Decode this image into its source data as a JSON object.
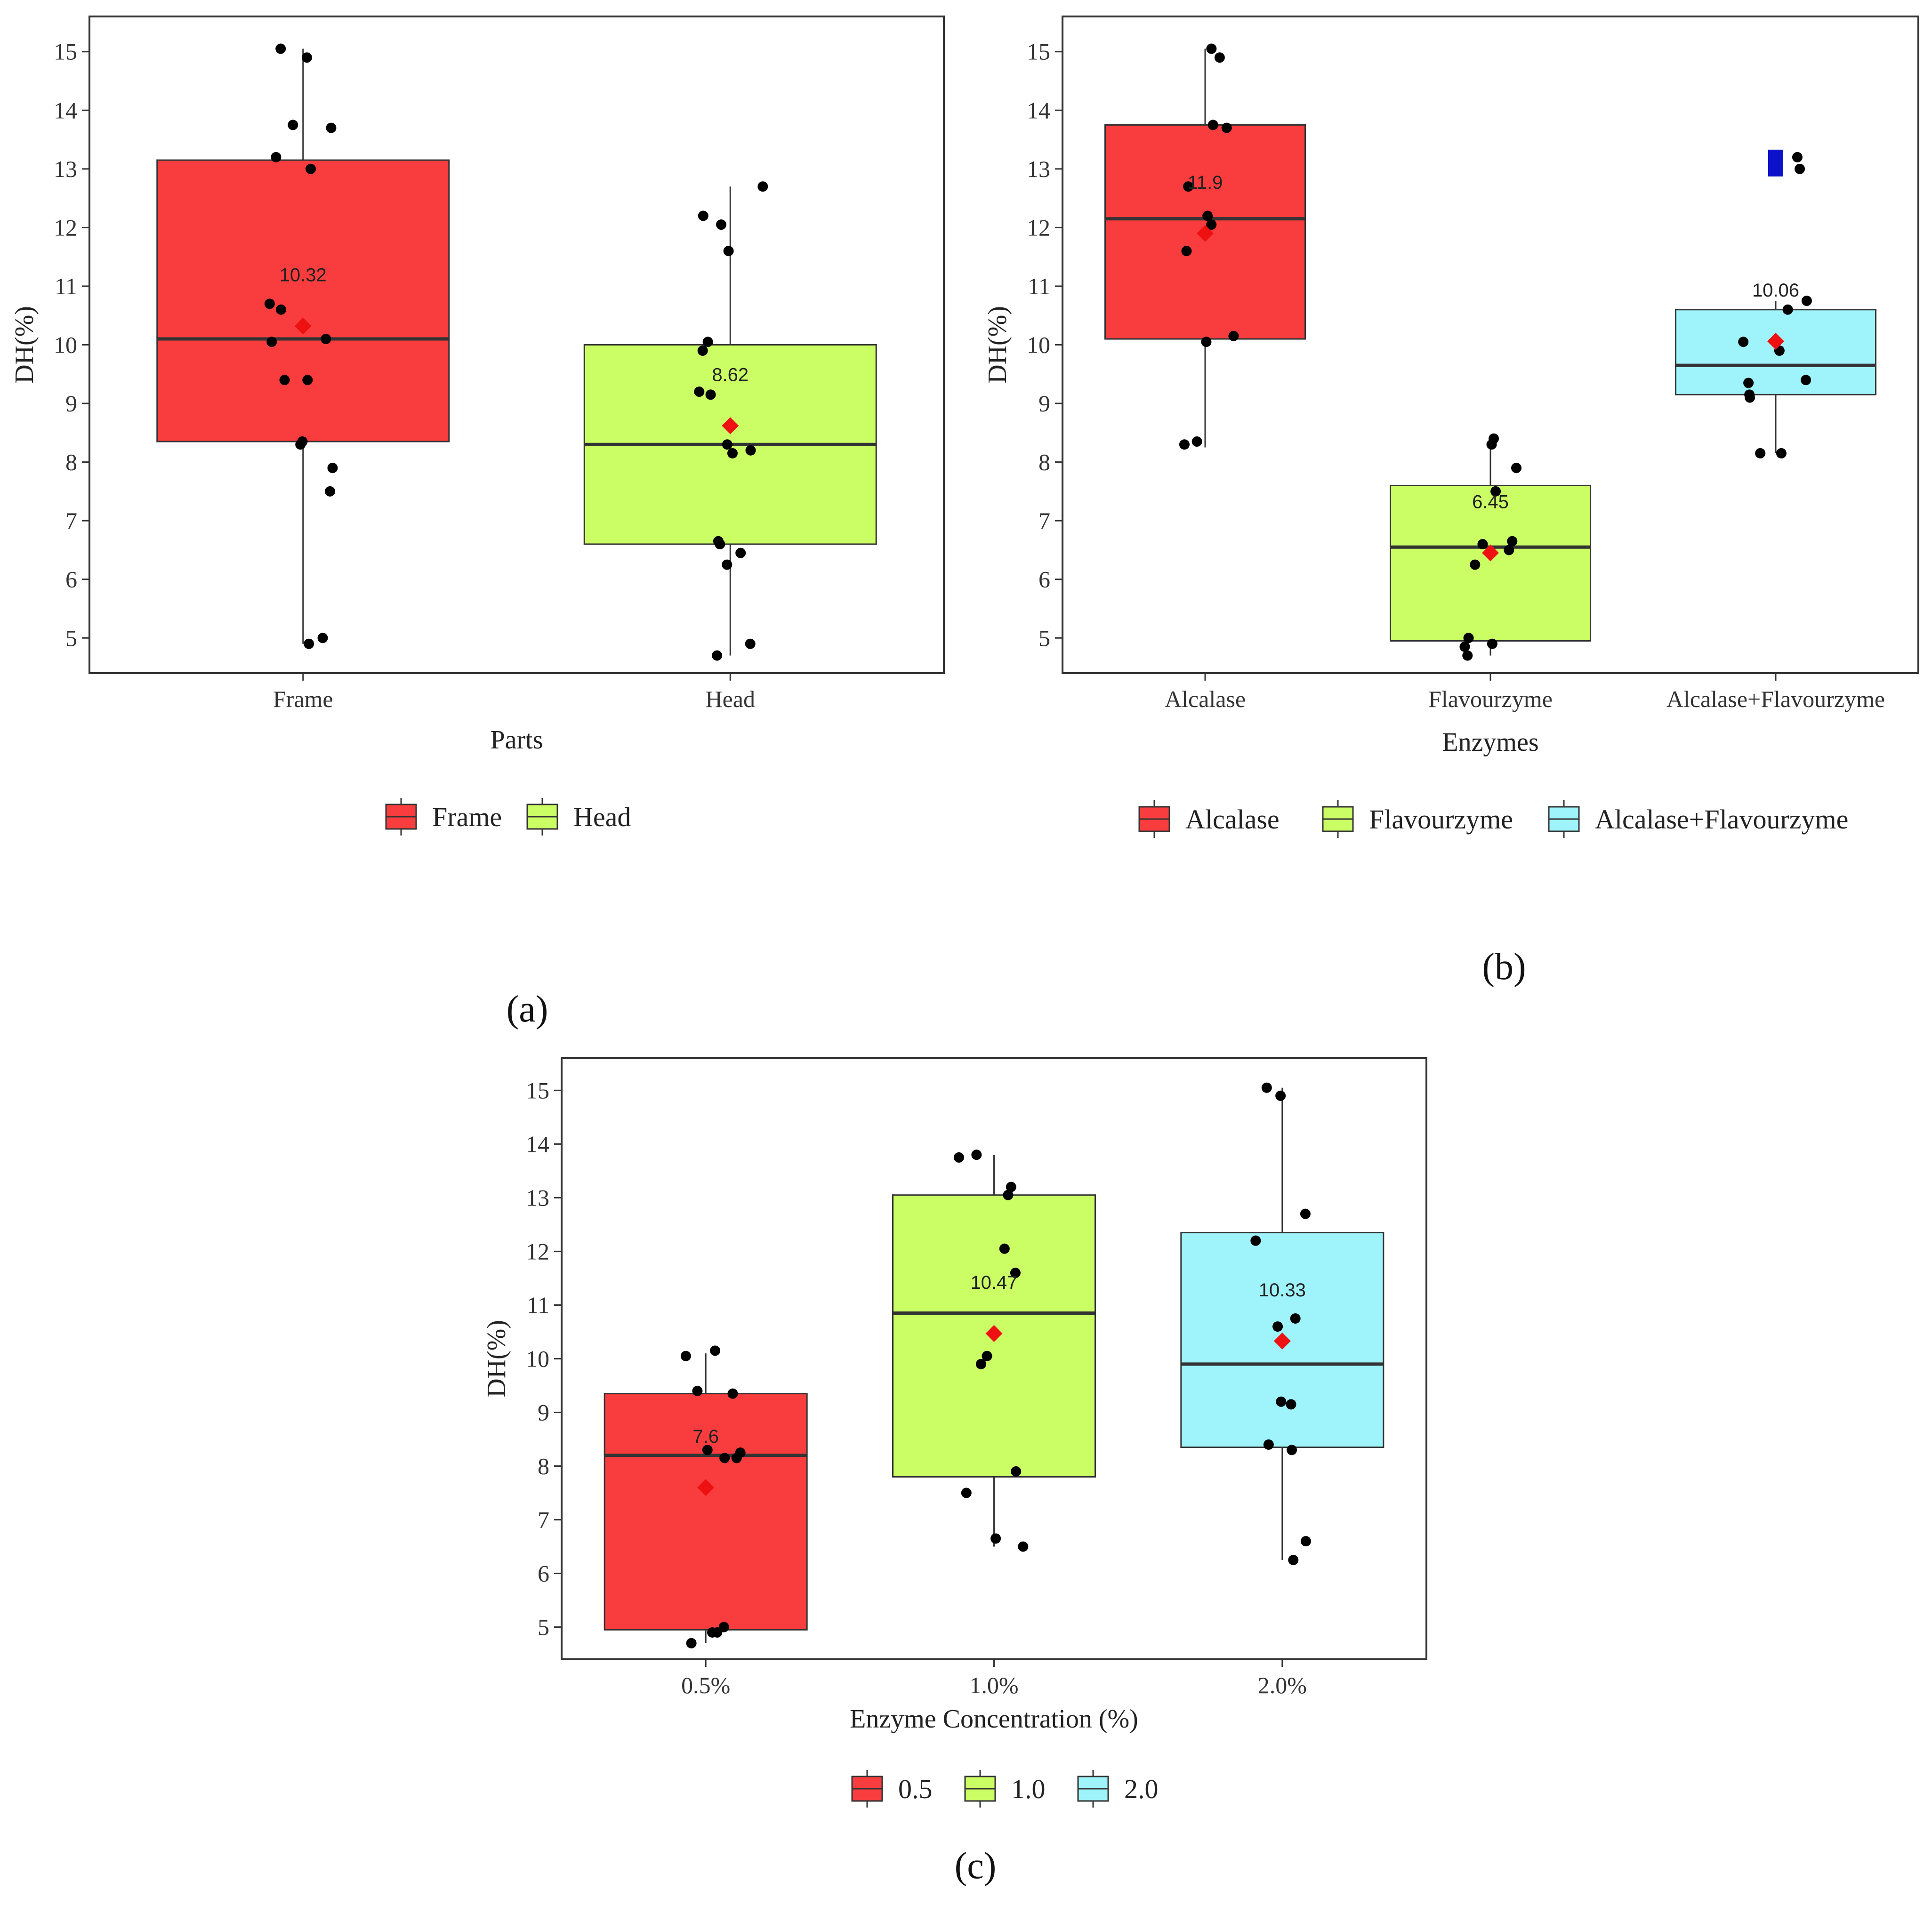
{
  "chart_data": [
    {
      "type": "box",
      "panel_label": "(a)",
      "xlabel": "Parts",
      "ylabel": "DH(%)",
      "ylim": [
        4.4,
        15.6
      ],
      "yticks": [
        "5",
        "6",
        "7",
        "8",
        "9",
        "10",
        "11",
        "12",
        "13",
        "14",
        "15"
      ],
      "legend_title": "",
      "legend_position": "bottom",
      "groups": [
        {
          "category": "Frame",
          "legend_label": "Frame",
          "color": "#f93d3e",
          "q1": 8.35,
          "median": 10.1,
          "q3": 13.15,
          "whisker_low": 4.9,
          "whisker_high": 15.05,
          "mean": 10.32,
          "mean_label": "10.32",
          "outliers": [],
          "points": [
            15.05,
            14.9,
            13.75,
            13.7,
            13.2,
            13.0,
            10.7,
            10.6,
            10.1,
            10.05,
            9.4,
            9.4,
            8.35,
            8.3,
            7.9,
            7.5,
            5.0,
            4.9
          ]
        },
        {
          "category": "Head",
          "legend_label": "Head",
          "color": "#cbfd65",
          "q1": 6.6,
          "median": 8.3,
          "q3": 10.0,
          "whisker_low": 4.7,
          "whisker_high": 12.7,
          "mean": 8.62,
          "mean_label": "8.62",
          "outliers": [],
          "points": [
            12.7,
            12.2,
            12.05,
            11.6,
            10.05,
            9.9,
            9.2,
            9.15,
            8.3,
            8.2,
            8.15,
            6.65,
            6.6,
            6.45,
            6.25,
            4.9,
            4.7
          ]
        }
      ]
    },
    {
      "type": "box",
      "panel_label": "(b)",
      "xlabel": "Enzymes",
      "ylabel": "DH(%)",
      "ylim": [
        4.4,
        15.6
      ],
      "yticks": [
        "5",
        "6",
        "7",
        "8",
        "9",
        "10",
        "11",
        "12",
        "13",
        "14",
        "15"
      ],
      "legend_title": "",
      "legend_position": "bottom",
      "groups": [
        {
          "category": "Alcalase",
          "legend_label": "Alcalase",
          "color": "#f93d3e",
          "q1": 10.1,
          "median": 12.15,
          "q3": 13.75,
          "whisker_low": 8.25,
          "whisker_high": 15.05,
          "mean": 11.9,
          "mean_label": "11.9",
          "outliers": [],
          "points": [
            15.05,
            14.9,
            13.75,
            13.7,
            12.7,
            12.2,
            12.05,
            11.6,
            10.15,
            10.05,
            8.35,
            8.3
          ]
        },
        {
          "category": "Flavourzyme",
          "legend_label": "Flavourzyme",
          "color": "#cbfd65",
          "q1": 4.95,
          "median": 6.55,
          "q3": 7.6,
          "whisker_low": 4.7,
          "whisker_high": 8.4,
          "mean": 6.45,
          "mean_label": "6.45",
          "outliers": [],
          "points": [
            8.4,
            8.3,
            7.9,
            7.5,
            6.65,
            6.6,
            6.5,
            6.25,
            5.0,
            4.9,
            4.85,
            4.7
          ]
        },
        {
          "category": "Alcalase+Flavourzyme",
          "legend_label": "Alcalase+Flavourzyme",
          "color": "#9ff4fb",
          "q1": 9.15,
          "median": 9.65,
          "q3": 10.6,
          "whisker_low": 8.15,
          "whisker_high": 10.75,
          "mean": 10.06,
          "mean_label": "10.06",
          "outliers": [
            13.2,
            13.0
          ],
          "points": [
            13.2,
            13.0,
            10.75,
            10.6,
            10.05,
            9.9,
            9.4,
            9.35,
            9.15,
            9.1,
            8.15,
            8.15
          ]
        }
      ]
    },
    {
      "type": "box",
      "panel_label": "(c)",
      "xlabel": "Enzyme Concentration (%)",
      "ylabel": "DH(%)",
      "ylim": [
        4.4,
        15.6
      ],
      "yticks": [
        "5",
        "6",
        "7",
        "8",
        "9",
        "10",
        "11",
        "12",
        "13",
        "14",
        "15"
      ],
      "legend_title": "",
      "legend_position": "bottom",
      "groups": [
        {
          "category": "0.5%",
          "legend_label": "0.5",
          "color": "#f93d3e",
          "q1": 4.95,
          "median": 8.2,
          "q3": 9.35,
          "whisker_low": 4.7,
          "whisker_high": 10.1,
          "mean": 7.6,
          "mean_label": "7.6",
          "outliers": [],
          "points": [
            10.15,
            10.05,
            9.4,
            9.35,
            8.3,
            8.25,
            8.15,
            8.15,
            5.0,
            4.9,
            4.9,
            4.7
          ]
        },
        {
          "category": "1.0%",
          "legend_label": "1.0",
          "color": "#cbfd65",
          "q1": 7.8,
          "median": 10.85,
          "q3": 13.05,
          "whisker_low": 6.5,
          "whisker_high": 13.8,
          "mean": 10.47,
          "mean_label": "10.47",
          "outliers": [],
          "points": [
            13.8,
            13.75,
            13.2,
            13.05,
            12.05,
            11.6,
            10.05,
            9.9,
            7.9,
            7.5,
            6.65,
            6.5
          ]
        },
        {
          "category": "2.0%",
          "legend_label": "2.0",
          "color": "#9ff4fb",
          "q1": 8.35,
          "median": 9.9,
          "q3": 12.35,
          "whisker_low": 6.25,
          "whisker_high": 15.05,
          "mean": 10.33,
          "mean_label": "10.33",
          "outliers": [],
          "points": [
            15.05,
            14.9,
            12.7,
            12.2,
            10.75,
            10.6,
            9.2,
            9.15,
            8.4,
            8.3,
            6.6,
            6.25
          ]
        }
      ]
    }
  ],
  "colors": {
    "mean_marker": "#ee1111",
    "outlier_marker": "#0b12c9",
    "point": "#000000",
    "frame": "#333333"
  }
}
